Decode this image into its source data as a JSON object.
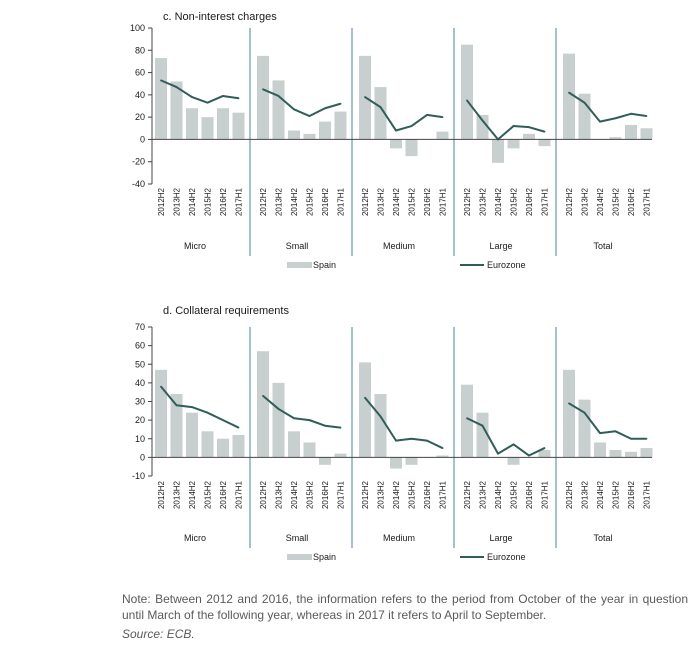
{
  "colors": {
    "spain": "#c7cfcf",
    "eurozone": "#2f5e5a",
    "divider": "#4a7fb5",
    "axis": "#444444"
  },
  "legend": {
    "spain": "Spain",
    "eurozone": "Eurozone"
  },
  "note": "Note: Between 2012 and 2016, the information refers to the period from October of the year in question until March of the following year, whereas in 2017 it refers to April to September.",
  "source": "Source: ECB.",
  "chart_data": [
    {
      "type": "bar",
      "title": "c. Non-interest charges",
      "ylim": [
        -40,
        100
      ],
      "yticks": [
        -40,
        -20,
        0,
        20,
        40,
        60,
        80,
        100
      ],
      "periods": [
        "2012H2",
        "2013H2",
        "2014H2",
        "2015H2",
        "2016H2",
        "2017H1"
      ],
      "groups": [
        "Micro",
        "Small",
        "Medium",
        "Large",
        "Total"
      ],
      "series": [
        {
          "name": "Spain",
          "kind": "bar",
          "values": [
            [
              73,
              52,
              28,
              20,
              28,
              24
            ],
            [
              75,
              53,
              8,
              5,
              16,
              25
            ],
            [
              75,
              47,
              -8,
              -15,
              0,
              7
            ],
            [
              85,
              22,
              -21,
              -8,
              5,
              -6
            ],
            [
              77,
              41,
              0,
              2,
              13,
              10
            ]
          ]
        },
        {
          "name": "Eurozone",
          "kind": "line",
          "values": [
            [
              53,
              47,
              38,
              33,
              39,
              37
            ],
            [
              45,
              39,
              27,
              21,
              28,
              32
            ],
            [
              38,
              29,
              8,
              12,
              22,
              20
            ],
            [
              35,
              17,
              0,
              12,
              11,
              7
            ],
            [
              42,
              33,
              16,
              19,
              23,
              21
            ]
          ]
        }
      ]
    },
    {
      "type": "bar",
      "title": "d. Collateral requirements",
      "ylim": [
        -10,
        70
      ],
      "yticks": [
        -10,
        0,
        10,
        20,
        30,
        40,
        50,
        60,
        70
      ],
      "periods": [
        "2012H2",
        "2013H2",
        "2014H2",
        "2015H2",
        "2016H2",
        "2017H1"
      ],
      "groups": [
        "Micro",
        "Small",
        "Medium",
        "Large",
        "Total"
      ],
      "series": [
        {
          "name": "Spain",
          "kind": "bar",
          "values": [
            [
              47,
              34,
              24,
              14,
              10,
              12
            ],
            [
              57,
              40,
              14,
              8,
              -4,
              2
            ],
            [
              51,
              34,
              -6,
              -4,
              0,
              1
            ],
            [
              39,
              24,
              0,
              -4,
              0,
              4
            ],
            [
              47,
              31,
              8,
              4,
              3,
              5
            ]
          ]
        },
        {
          "name": "Eurozone",
          "kind": "line",
          "values": [
            [
              38,
              28,
              27,
              24,
              20,
              16
            ],
            [
              33,
              26,
              21,
              20,
              17,
              16
            ],
            [
              32,
              22,
              9,
              10,
              9,
              5
            ],
            [
              21,
              17,
              2,
              7,
              1,
              5
            ],
            [
              29,
              24,
              13,
              14,
              10,
              10
            ]
          ]
        }
      ]
    }
  ]
}
